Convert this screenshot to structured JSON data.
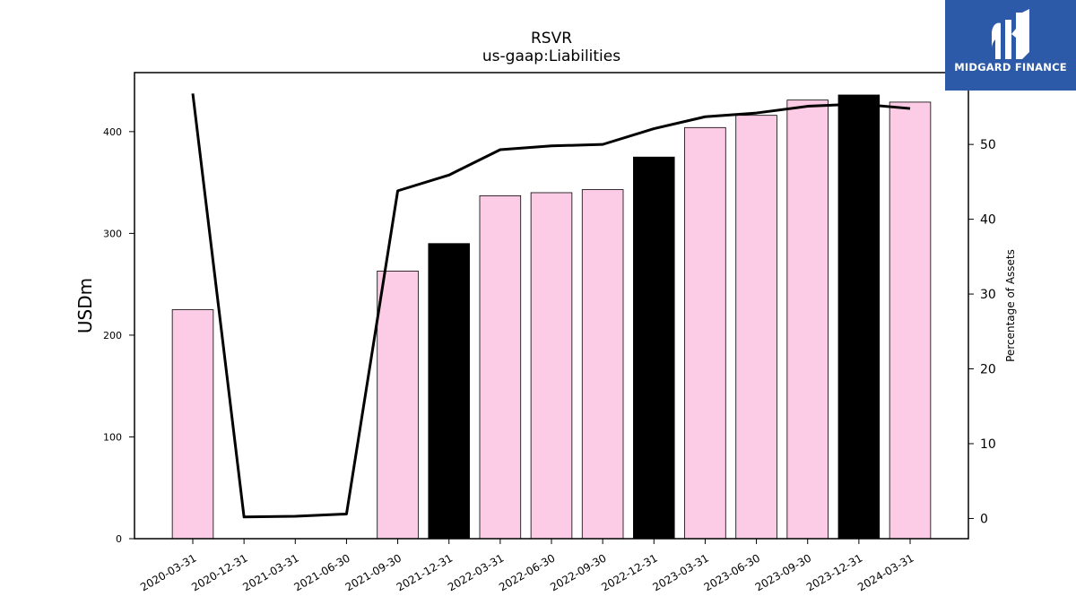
{
  "chart_data": {
    "type": "bar",
    "title": "RSVR",
    "subtitle": "us-gaap:Liabilities",
    "ylabel": "USDm",
    "y2label": "Percentage of Assets",
    "categories": [
      "2020-03-31",
      "2020-12-31",
      "2021-03-31",
      "2021-06-30",
      "2021-09-30",
      "2021-12-31",
      "2022-03-31",
      "2022-06-30",
      "2022-09-30",
      "2022-12-31",
      "2023-03-31",
      "2023-06-30",
      "2023-09-30",
      "2023-12-31",
      "2024-03-31"
    ],
    "series": [
      {
        "type": "bar",
        "values": [
          225,
          0,
          0,
          0,
          263,
          290,
          337,
          340,
          343,
          375,
          404,
          416,
          431,
          436,
          429
        ],
        "bar_colors": [
          "#fccbe5",
          "#fccbe5",
          "#fccbe5",
          "#fccbe5",
          "#fccbe5",
          "#000000",
          "#fccbe5",
          "#fccbe5",
          "#fccbe5",
          "#000000",
          "#fccbe5",
          "#fccbe5",
          "#fccbe5",
          "#000000",
          "#fccbe5"
        ]
      },
      {
        "type": "line",
        "axis": "right",
        "color": "#000000",
        "values": [
          56.8,
          0.2,
          0.3,
          0.6,
          43.8,
          45.9,
          49.3,
          49.8,
          50.0,
          52.1,
          53.7,
          54.2,
          55.1,
          55.4,
          54.8
        ]
      }
    ],
    "ylim": [
      0,
      458
    ],
    "y2lim": [
      -2.7,
      59.6
    ],
    "yticks": [
      0,
      100,
      200,
      300,
      400
    ],
    "y2ticks": [
      0,
      10,
      20,
      30,
      40,
      50
    ],
    "grid": false
  },
  "logo": {
    "text": "MIDGARD FINANCE"
  }
}
